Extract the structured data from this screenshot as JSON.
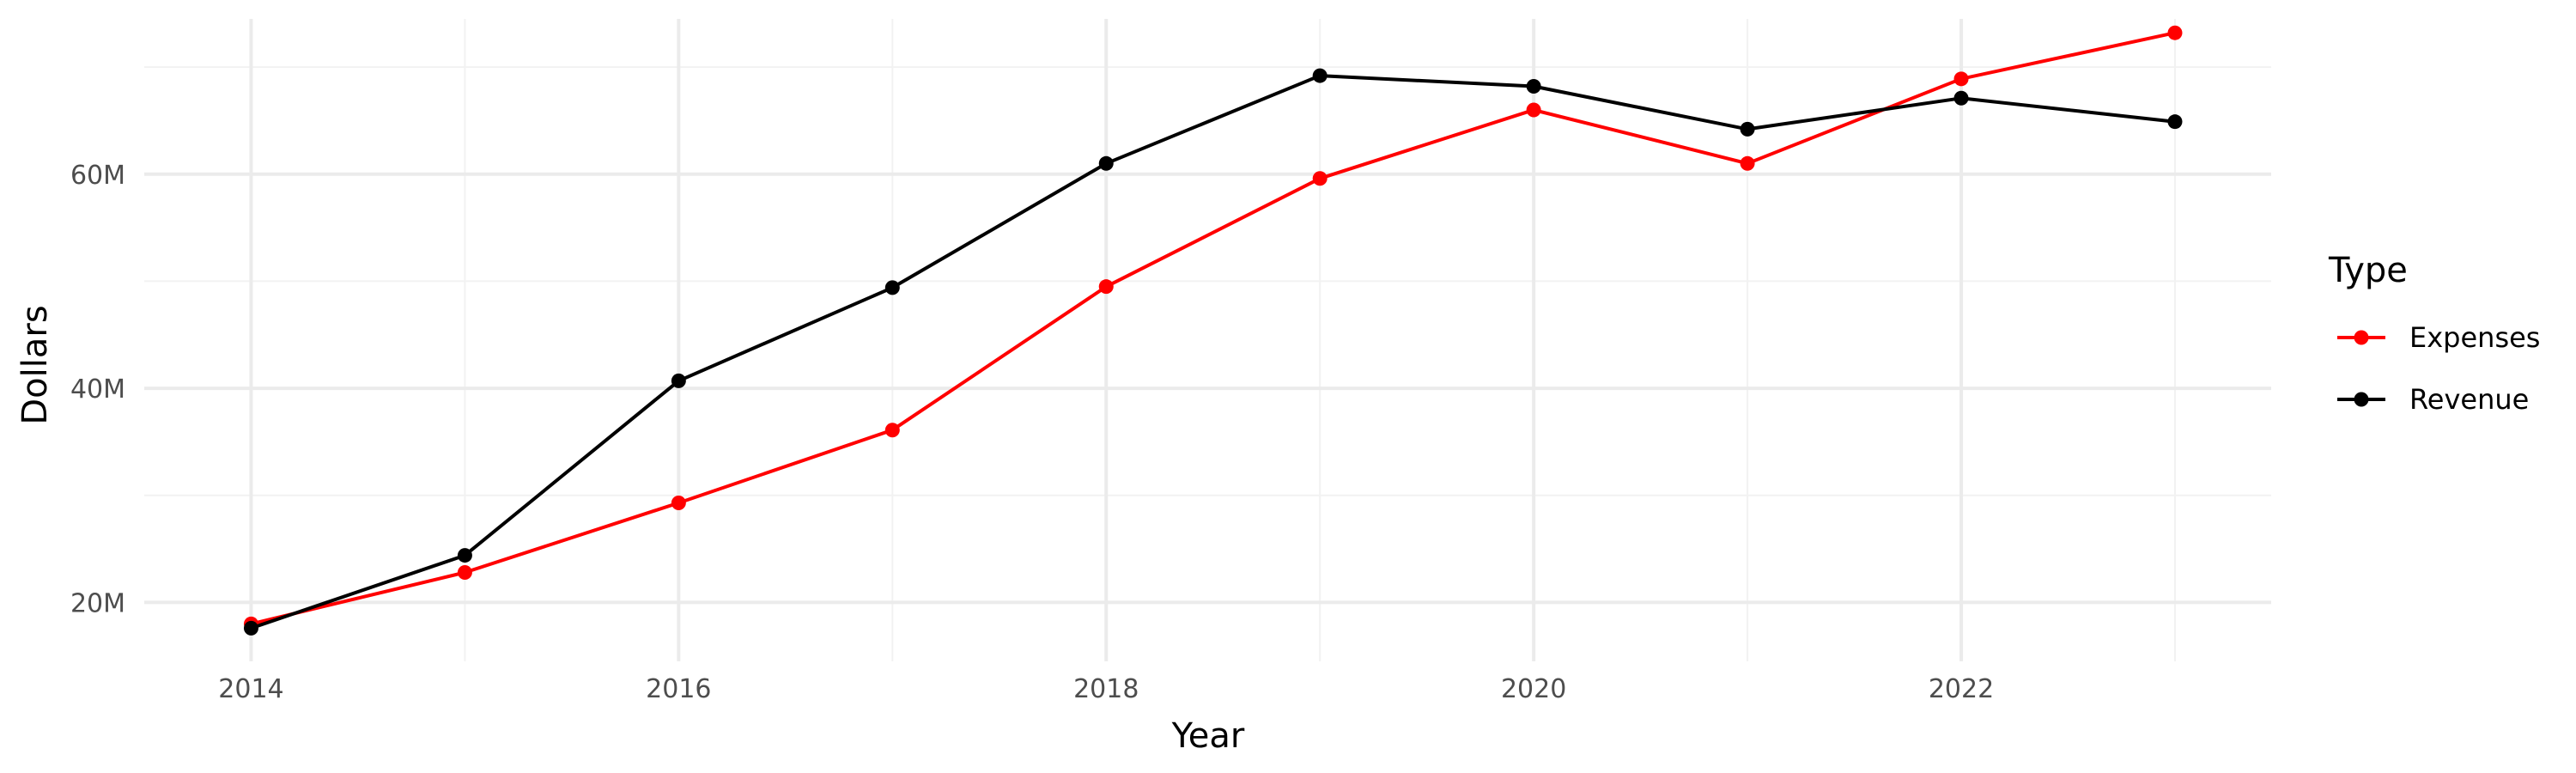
{
  "chart_data": {
    "type": "line",
    "xlabel": "Year",
    "ylabel": "Dollars",
    "x": [
      2014,
      2015,
      2016,
      2017,
      2018,
      2019,
      2020,
      2021,
      2022,
      2023
    ],
    "xlim": [
      2013.5,
      2023.45
    ],
    "ylim": [
      14.5,
      74.5
    ],
    "x_ticks": [
      2014,
      2016,
      2018,
      2020,
      2022
    ],
    "x_tick_labels": [
      "2014",
      "2016",
      "2018",
      "2020",
      "2022"
    ],
    "y_ticks": [
      20,
      40,
      60
    ],
    "y_tick_labels": [
      "20M",
      "40M",
      "60M"
    ],
    "y_minor_ticks": [
      30,
      50,
      70
    ],
    "x_minor_ticks": [
      2015,
      2017,
      2019,
      2021,
      2023
    ],
    "grid": true,
    "legend": {
      "title": "Type",
      "position": "right"
    },
    "series": [
      {
        "name": "Expenses",
        "color": "#ff0000",
        "values": [
          18.0,
          22.8,
          29.3,
          36.1,
          49.5,
          59.6,
          66.0,
          61.0,
          68.9,
          73.2
        ]
      },
      {
        "name": "Revenue",
        "color": "#000000",
        "values": [
          17.6,
          24.4,
          40.7,
          49.4,
          61.0,
          69.2,
          68.2,
          64.2,
          67.1,
          64.9
        ]
      }
    ]
  }
}
